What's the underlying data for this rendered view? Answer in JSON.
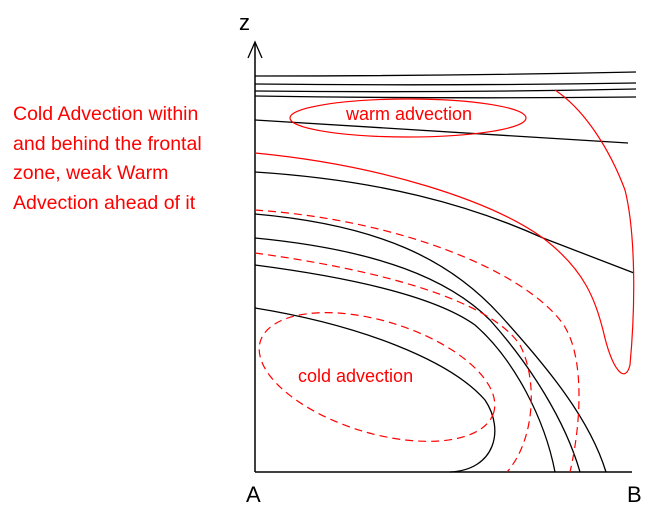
{
  "axes": {
    "vertical_label": "z",
    "left_label": "A",
    "right_label": "B"
  },
  "caption_lines": [
    "Cold Advection within",
    "and behind the frontal",
    "zone, weak Warm",
    "Advection ahead of it"
  ],
  "regions": {
    "warm": "warm advection",
    "cold": "cold advection"
  },
  "colors": {
    "isentropes": "#000000",
    "advection": "#ff0000"
  }
}
